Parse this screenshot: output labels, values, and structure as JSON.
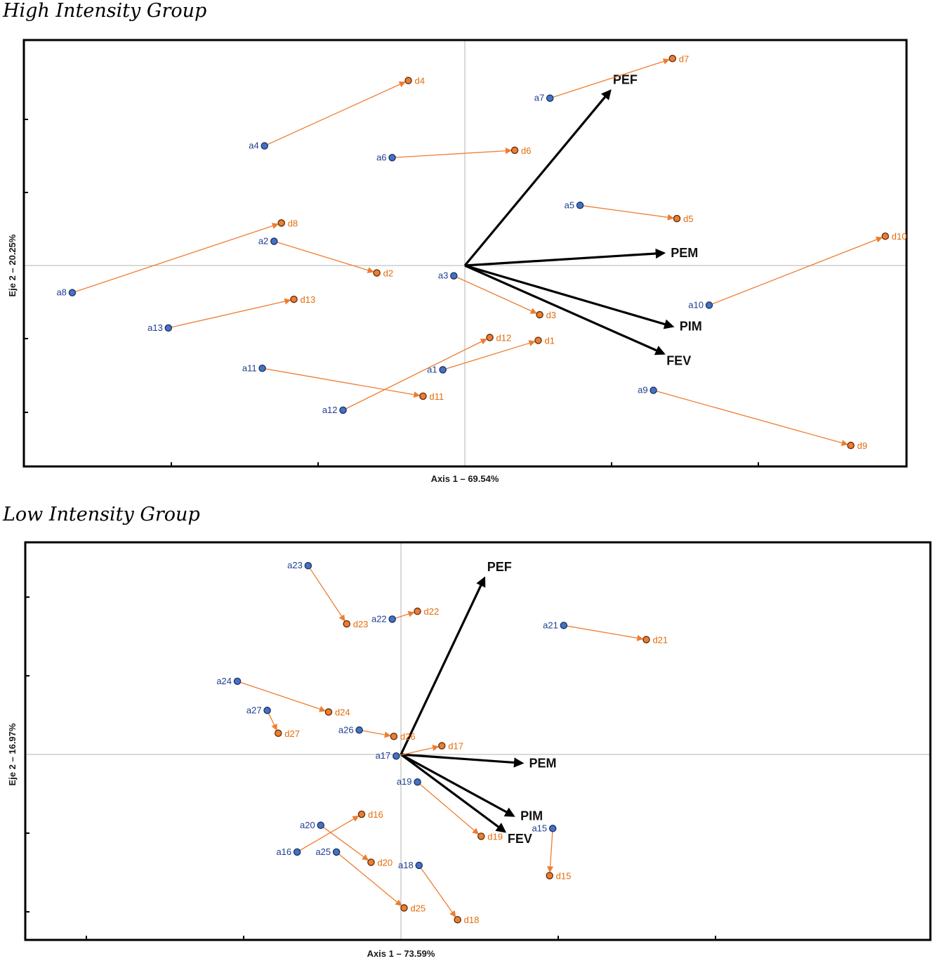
{
  "colors": {
    "before": "#4472c4",
    "before_label": "#1f3f8f",
    "after": "#ed7d31",
    "after_label": "#e36c0a",
    "vector": "#000000",
    "frame": "#000000",
    "refline": "#b3b3b3"
  },
  "chart_data": [
    {
      "type": "scatter",
      "subtype": "biplot",
      "title": "High Intensity Group",
      "xlabel": "Axis 1 – 69.54%",
      "ylabel": "Eje 2 – 20.25%",
      "xlim": [
        -3.0,
        3.0
      ],
      "ylim": [
        -2.75,
        3.1
      ],
      "grid": false,
      "series": [
        {
          "points": [
            {
              "a": "a1",
              "ax": -0.3,
              "ay": -1.42,
              "d": "d1",
              "dx": 1.0,
              "dy": -1.02
            },
            {
              "a": "a2",
              "ax": -2.6,
              "ay": 0.33,
              "d": "d2",
              "dx": -1.2,
              "dy": -0.1
            },
            {
              "a": "a3",
              "ax": -0.15,
              "ay": -0.14,
              "d": "d3",
              "dx": 1.02,
              "dy": -0.67
            },
            {
              "a": "a4",
              "ax": -2.73,
              "ay": 1.63,
              "d": "d4",
              "dx": -0.77,
              "dy": 2.52
            },
            {
              "a": "a5",
              "ax": 1.57,
              "ay": 0.82,
              "d": "d5",
              "dx": 2.89,
              "dy": 0.64
            },
            {
              "a": "a6",
              "ax": -0.99,
              "ay": 1.47,
              "d": "d6",
              "dx": 0.68,
              "dy": 1.57
            },
            {
              "a": "a7",
              "ax": 1.16,
              "ay": 2.28,
              "d": "d7",
              "dx": 2.83,
              "dy": 2.82
            },
            {
              "a": "a8",
              "ax": -5.35,
              "ay": -0.37,
              "d": "d8",
              "dx": -2.5,
              "dy": 0.58
            },
            {
              "a": "a9",
              "ax": 2.57,
              "ay": -1.7,
              "d": "d9",
              "dx": 5.26,
              "dy": -2.45
            },
            {
              "a": "a10",
              "ax": 3.33,
              "ay": -0.54,
              "d": "d10",
              "dx": 5.73,
              "dy": 0.4
            },
            {
              "a": "a11",
              "ax": -2.76,
              "ay": -1.4,
              "d": "d11",
              "dx": -0.57,
              "dy": -1.78
            },
            {
              "a": "a12",
              "ax": -1.66,
              "ay": -1.97,
              "d": "d12",
              "dx": 0.34,
              "dy": -0.98
            },
            {
              "a": "a13",
              "ax": -4.04,
              "ay": -0.85,
              "d": "d13",
              "dx": -2.33,
              "dy": -0.46
            }
          ]
        }
      ],
      "vectors": [
        {
          "name": "PEF",
          "x": 1.98,
          "y": 2.38
        },
        {
          "name": "PEM",
          "x": 2.71,
          "y": 0.17
        },
        {
          "name": "PIM",
          "x": 2.83,
          "y": -0.83
        },
        {
          "name": "FEV",
          "x": 2.71,
          "y": -1.2
        }
      ]
    },
    {
      "type": "scatter",
      "subtype": "biplot",
      "title": "Low Intensity Group",
      "xlabel": "Axis 1 – 73.59%",
      "ylabel": "Eje 2 – 16.97%",
      "xlim": [
        -2.4,
        3.0
      ],
      "ylim": [
        -2.35,
        2.65
      ],
      "grid": false,
      "series": [
        {
          "points": [
            {
              "a": "a15",
              "ax": 1.93,
              "ay": -0.94,
              "d": "d15",
              "dx": 1.89,
              "dy": -1.54
            },
            {
              "a": "a16",
              "ax": -1.32,
              "ay": -1.24,
              "d": "d16",
              "dx": -0.5,
              "dy": -0.76
            },
            {
              "a": "a17",
              "ax": -0.06,
              "ay": -0.02,
              "d": "d17",
              "dx": 0.52,
              "dy": 0.11
            },
            {
              "a": "a18",
              "ax": 0.23,
              "ay": -1.41,
              "d": "d18",
              "dx": 0.72,
              "dy": -2.1
            },
            {
              "a": "a19",
              "ax": 0.21,
              "ay": -0.35,
              "d": "d19",
              "dx": 1.02,
              "dy": -1.04
            },
            {
              "a": "a20",
              "ax": -1.02,
              "ay": -0.9,
              "d": "d20",
              "dx": -0.38,
              "dy": -1.37
            },
            {
              "a": "a21",
              "ax": 2.07,
              "ay": 1.64,
              "d": "d21",
              "dx": 3.12,
              "dy": 1.46
            },
            {
              "a": "a22",
              "ax": -0.11,
              "ay": 1.72,
              "d": "d22",
              "dx": 0.21,
              "dy": 1.82
            },
            {
              "a": "a23",
              "ax": -1.18,
              "ay": 2.4,
              "d": "d23",
              "dx": -0.69,
              "dy": 1.66
            },
            {
              "a": "a24",
              "ax": -2.08,
              "ay": 0.93,
              "d": "d24",
              "dx": -0.92,
              "dy": 0.54
            },
            {
              "a": "a25",
              "ax": -0.82,
              "ay": -1.24,
              "d": "d25",
              "dx": 0.04,
              "dy": -1.95
            },
            {
              "a": "a26",
              "ax": -0.53,
              "ay": 0.31,
              "d": "d26",
              "dx": -0.09,
              "dy": 0.23
            },
            {
              "a": "a27",
              "ax": -1.7,
              "ay": 0.56,
              "d": "d27",
              "dx": -1.56,
              "dy": 0.27
            }
          ]
        }
      ],
      "vectors": [
        {
          "name": "PEF",
          "x": 1.06,
          "y": 2.24
        },
        {
          "name": "PEM",
          "x": 1.54,
          "y": -0.11
        },
        {
          "name": "PIM",
          "x": 1.43,
          "y": -0.78
        },
        {
          "name": "FEV",
          "x": 1.32,
          "y": -0.98
        }
      ]
    }
  ]
}
